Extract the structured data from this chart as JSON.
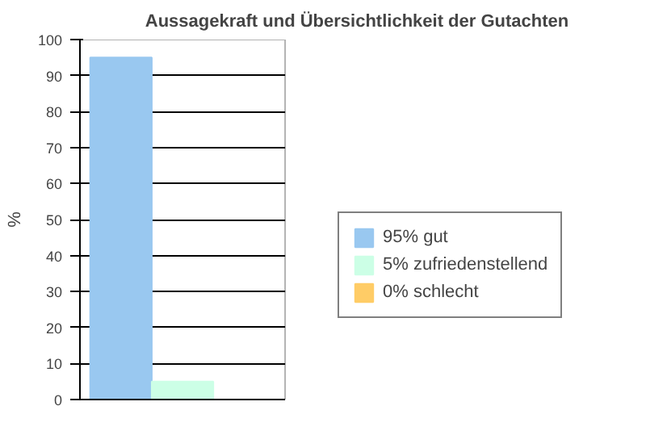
{
  "chart_data": {
    "type": "bar",
    "title": "Aussagekraft und Übersichtlichkeit der Gutachten",
    "ylabel": "%",
    "categories": [
      null
    ],
    "series": [
      {
        "name": "95% gut",
        "color": "#99c8f0",
        "values": [
          95
        ]
      },
      {
        "name": "5% zufriedenstellend",
        "color": "#ccffe6",
        "values": [
          5
        ]
      },
      {
        "name": "0% schlecht",
        "color": "#ffcc66",
        "values": [
          0
        ]
      }
    ],
    "ylim": [
      0,
      100
    ],
    "yticks": [
      0,
      10,
      20,
      30,
      40,
      50,
      60,
      70,
      80,
      90,
      100
    ],
    "grid": "y",
    "legend": "right"
  }
}
